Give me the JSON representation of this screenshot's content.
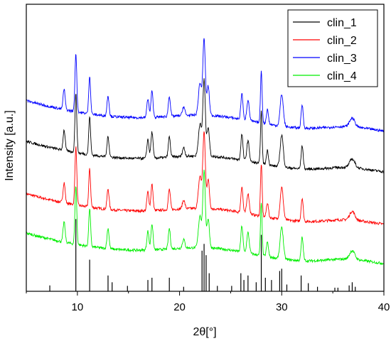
{
  "chart_data": {
    "type": "line",
    "xlabel": "2θ[°]",
    "ylabel": "Intensity [a.u.]",
    "xlim": [
      5,
      40
    ],
    "x_ticks": [
      "10",
      "20",
      "30",
      "40"
    ],
    "y_ticks": "none",
    "legend_position": "top-right",
    "series": [
      {
        "name": "clin_1",
        "color": "#000000",
        "offset": 4.8
      },
      {
        "name": "clin_2",
        "color": "#ff0000",
        "offset": 3.0
      },
      {
        "name": "clin_3",
        "color": "#0000ff",
        "offset": 6.2
      },
      {
        "name": "clin_4",
        "color": "#00ee00",
        "offset": 1.65
      }
    ],
    "peaks": [
      {
        "x": 8.7,
        "h": 0.7,
        "w": 0.1
      },
      {
        "x": 9.85,
        "h": 2.0,
        "w": 0.09
      },
      {
        "x": 11.2,
        "h": 1.3,
        "w": 0.09
      },
      {
        "x": 13.0,
        "h": 0.7,
        "w": 0.1
      },
      {
        "x": 16.9,
        "h": 0.65,
        "w": 0.1
      },
      {
        "x": 17.3,
        "h": 0.9,
        "w": 0.1
      },
      {
        "x": 19.0,
        "h": 0.7,
        "w": 0.1
      },
      {
        "x": 20.4,
        "h": 0.3,
        "w": 0.12
      },
      {
        "x": 22.0,
        "h": 1.1,
        "w": 0.15
      },
      {
        "x": 22.4,
        "h": 2.6,
        "w": 0.12
      },
      {
        "x": 22.8,
        "h": 1.0,
        "w": 0.12
      },
      {
        "x": 26.1,
        "h": 0.9,
        "w": 0.1
      },
      {
        "x": 26.7,
        "h": 0.7,
        "w": 0.12
      },
      {
        "x": 28.0,
        "h": 1.8,
        "w": 0.08
      },
      {
        "x": 28.6,
        "h": 0.5,
        "w": 0.1
      },
      {
        "x": 30.0,
        "h": 1.1,
        "w": 0.15
      },
      {
        "x": 32.0,
        "h": 0.8,
        "w": 0.1
      },
      {
        "x": 36.9,
        "h": 0.3,
        "w": 0.25
      }
    ],
    "reference_sticks": [
      {
        "x": 7.3,
        "h": 0.13
      },
      {
        "x": 9.85,
        "h": 1.6
      },
      {
        "x": 11.2,
        "h": 0.7
      },
      {
        "x": 13.0,
        "h": 0.35
      },
      {
        "x": 13.4,
        "h": 0.2
      },
      {
        "x": 14.9,
        "h": 0.12
      },
      {
        "x": 16.9,
        "h": 0.25
      },
      {
        "x": 17.3,
        "h": 0.3
      },
      {
        "x": 19.0,
        "h": 0.3
      },
      {
        "x": 20.4,
        "h": 0.1
      },
      {
        "x": 22.2,
        "h": 0.9
      },
      {
        "x": 22.4,
        "h": 1.05
      },
      {
        "x": 22.6,
        "h": 0.8
      },
      {
        "x": 22.9,
        "h": 0.4
      },
      {
        "x": 23.7,
        "h": 0.12
      },
      {
        "x": 25.1,
        "h": 0.12
      },
      {
        "x": 26.0,
        "h": 0.4
      },
      {
        "x": 26.3,
        "h": 0.25
      },
      {
        "x": 26.7,
        "h": 0.35
      },
      {
        "x": 27.5,
        "h": 0.2
      },
      {
        "x": 28.0,
        "h": 1.25
      },
      {
        "x": 28.4,
        "h": 0.3
      },
      {
        "x": 29.0,
        "h": 0.25
      },
      {
        "x": 29.8,
        "h": 0.45
      },
      {
        "x": 30.0,
        "h": 0.5
      },
      {
        "x": 30.5,
        "h": 0.15
      },
      {
        "x": 31.9,
        "h": 0.35
      },
      {
        "x": 32.6,
        "h": 0.18
      },
      {
        "x": 33.5,
        "h": 0.1
      },
      {
        "x": 35.2,
        "h": 0.08
      },
      {
        "x": 35.5,
        "h": 0.08
      },
      {
        "x": 36.6,
        "h": 0.13
      },
      {
        "x": 36.9,
        "h": 0.2
      },
      {
        "x": 37.2,
        "h": 0.1
      }
    ]
  }
}
